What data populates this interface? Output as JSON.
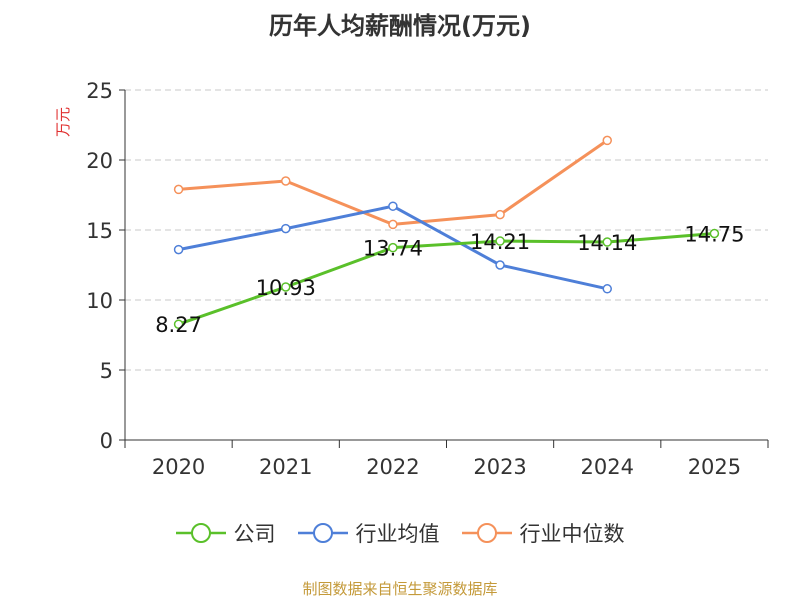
{
  "chart_data": {
    "type": "line",
    "title": "历年人均薪酬情况(万元)",
    "ylabel": "万元",
    "xlabel": "",
    "ylim": [
      0,
      25
    ],
    "yticks": [
      0,
      5,
      10,
      15,
      20,
      25
    ],
    "grid": true,
    "legend_position": "bottom",
    "categories": [
      "2020",
      "2021",
      "2022",
      "2023",
      "2024",
      "2025"
    ],
    "series": [
      {
        "name": "公司",
        "color": "#5ac02a",
        "values": [
          8.27,
          10.93,
          13.74,
          14.21,
          14.14,
          14.75
        ],
        "labels": [
          "8.27",
          "10.93",
          "13.74",
          "14.21",
          "14.14",
          "14.75"
        ]
      },
      {
        "name": "行业均值",
        "color": "#4e7fd8",
        "values": [
          13.6,
          15.1,
          16.7,
          12.5,
          10.8,
          null
        ]
      },
      {
        "name": "行业中位数",
        "color": "#f5915a",
        "values": [
          17.9,
          18.5,
          15.4,
          16.1,
          21.4,
          null
        ]
      }
    ]
  },
  "footer": {
    "source": "制图数据来自恒生聚源数据库"
  }
}
